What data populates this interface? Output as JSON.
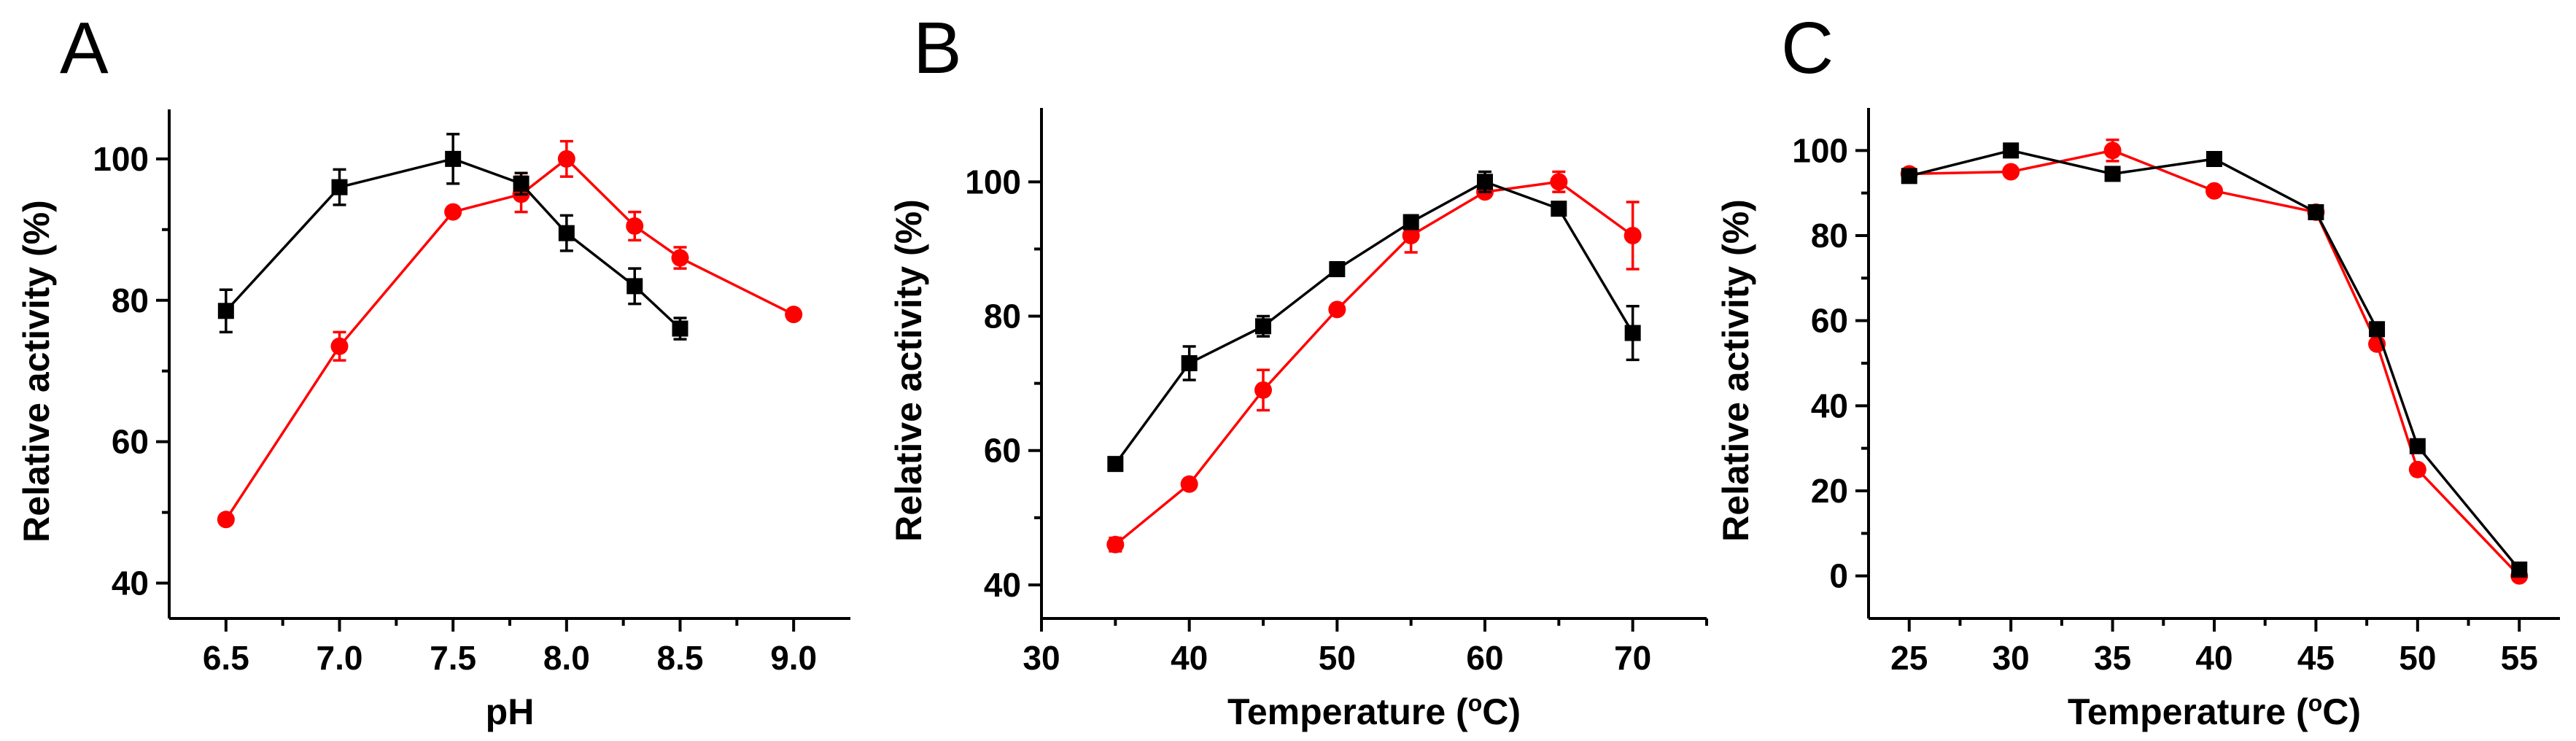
{
  "figure": {
    "panels": [
      "A",
      "B",
      "C"
    ]
  },
  "chart_data": [
    {
      "type": "line",
      "panel": "A",
      "title": "",
      "xlabel": "pH",
      "ylabel": "Relative activity (%)",
      "xlim": [
        6.25,
        9.25
      ],
      "ylim": [
        35,
        107
      ],
      "xticks": [
        6.5,
        7.0,
        7.5,
        8.0,
        8.5,
        9.0
      ],
      "xtick_labels": [
        "6.5",
        "7.0",
        "7.5",
        "8.0",
        "8.5",
        "9.0"
      ],
      "xminor": [
        6.75,
        7.25,
        7.75,
        8.25,
        8.75
      ],
      "yticks": [
        40,
        60,
        80,
        100
      ],
      "ytick_labels": [
        "40",
        "60",
        "80",
        "100"
      ],
      "yminor": [
        50,
        70,
        90
      ],
      "series": [
        {
          "name": "black-square",
          "color": "#000000",
          "marker": "square",
          "x": [
            6.5,
            7.0,
            7.5,
            7.8,
            8.0,
            8.3,
            8.5
          ],
          "y": [
            78.5,
            96,
            100,
            96.5,
            89.5,
            82,
            76
          ],
          "err": [
            3,
            2.5,
            3.5,
            1.5,
            2.5,
            2.5,
            1.5
          ]
        },
        {
          "name": "red-circle",
          "color": "#ff0000",
          "marker": "circle",
          "x": [
            6.5,
            7.0,
            7.5,
            7.8,
            8.0,
            8.3,
            8.5,
            9.0
          ],
          "y": [
            49,
            73.5,
            92.5,
            95,
            100,
            90.5,
            86,
            78
          ],
          "err": [
            0.5,
            2,
            0.5,
            2.5,
            2.5,
            2,
            1.5,
            0.5
          ]
        }
      ]
    },
    {
      "type": "line",
      "panel": "B",
      "title": "",
      "xlabel": "Temperature (°C)",
      "xlabel_parts": [
        "Temperature (",
        "o",
        "C)"
      ],
      "ylabel": "Relative activity (%)",
      "xlim": [
        30,
        75
      ],
      "ylim": [
        35,
        111
      ],
      "xticks": [
        30,
        40,
        50,
        60,
        70
      ],
      "xtick_labels": [
        "30",
        "40",
        "50",
        "60",
        "70"
      ],
      "xminor": [
        35,
        45,
        55,
        65,
        75
      ],
      "yticks": [
        40,
        60,
        80,
        100
      ],
      "ytick_labels": [
        "40",
        "60",
        "80",
        "100"
      ],
      "yminor": [
        50,
        70,
        90
      ],
      "series": [
        {
          "name": "black-square",
          "color": "#000000",
          "marker": "square",
          "x": [
            35,
            40,
            45,
            50,
            55,
            60,
            65,
            70
          ],
          "y": [
            58,
            73,
            78.5,
            87,
            94,
            100,
            96,
            77.5
          ],
          "err": [
            0.5,
            2.5,
            1.5,
            1,
            1,
            1.5,
            0.5,
            4
          ]
        },
        {
          "name": "red-circle",
          "color": "#ff0000",
          "marker": "circle",
          "x": [
            35,
            40,
            45,
            50,
            55,
            60,
            65,
            70
          ],
          "y": [
            46,
            55,
            69,
            81,
            92,
            98.5,
            100,
            92
          ],
          "err": [
            1,
            0.5,
            3,
            0.5,
            2.5,
            0.5,
            1.5,
            5
          ]
        }
      ]
    },
    {
      "type": "line",
      "panel": "C",
      "title": "",
      "xlabel": "Temperature (°C)",
      "xlabel_parts": [
        "Temperature (",
        "o",
        "C)"
      ],
      "ylabel": "Relative activity (%)",
      "xlim": [
        23,
        57
      ],
      "ylim": [
        -10,
        110
      ],
      "xticks": [
        25,
        30,
        35,
        40,
        45,
        50,
        55
      ],
      "xtick_labels": [
        "25",
        "30",
        "35",
        "40",
        "45",
        "50",
        "55"
      ],
      "xminor": [
        27.5,
        32.5,
        37.5,
        42.5,
        47.5,
        52.5
      ],
      "yticks": [
        0,
        20,
        40,
        60,
        80,
        100
      ],
      "ytick_labels": [
        "0",
        "20",
        "40",
        "60",
        "80",
        "100"
      ],
      "yminor": [
        10,
        30,
        50,
        70,
        90
      ],
      "series": [
        {
          "name": "black-square",
          "color": "#000000",
          "marker": "square",
          "x": [
            25,
            30,
            35,
            40,
            45,
            48,
            50,
            55
          ],
          "y": [
            94,
            100,
            94.5,
            98,
            85.5,
            58,
            30.5,
            1.5
          ],
          "err": [
            1,
            1.5,
            0.5,
            1.5,
            1,
            1,
            0.5,
            0.5
          ]
        },
        {
          "name": "red-circle",
          "color": "#ff0000",
          "marker": "circle",
          "x": [
            25,
            30,
            35,
            40,
            45,
            48,
            50,
            55
          ],
          "y": [
            94.5,
            95,
            100,
            90.5,
            85.5,
            54.5,
            25,
            0
          ],
          "err": [
            1,
            0.5,
            2.5,
            0.5,
            1,
            1,
            0.5,
            0.5
          ]
        }
      ]
    }
  ]
}
